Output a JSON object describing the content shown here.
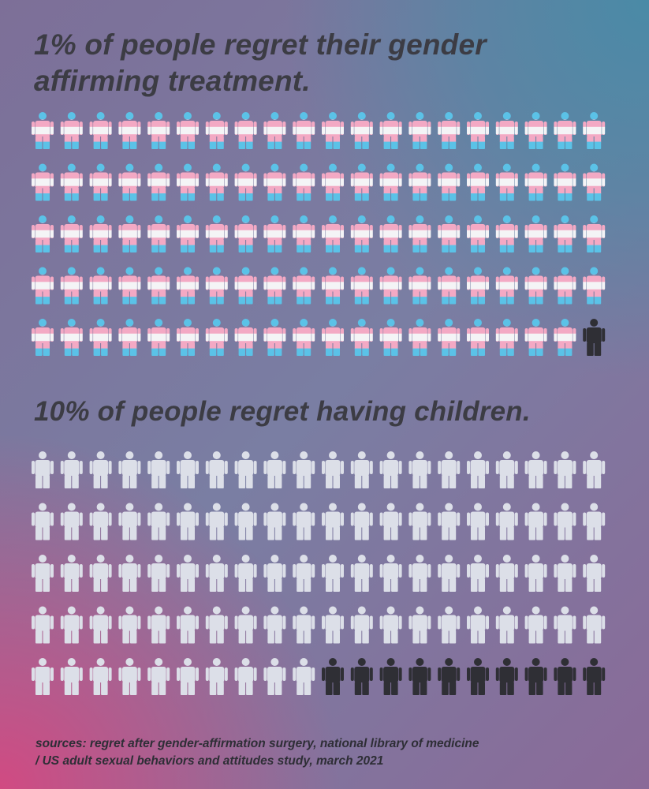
{
  "chart_data": [
    {
      "type": "pictogram",
      "title": "1% of people regret their gender affirming treatment.",
      "total": 100,
      "highlighted": 1,
      "percent": 1,
      "rows": 5,
      "columns": 20,
      "colors": {
        "base": "trans-flag",
        "highlight": "#2f2f35"
      }
    },
    {
      "type": "pictogram",
      "title": "10% of people regret having children.",
      "total": 100,
      "highlighted": 10,
      "percent": 10,
      "rows": 5,
      "columns": 20,
      "colors": {
        "base": "#dcdfe8",
        "highlight": "#2f2f35"
      }
    }
  ],
  "palette": {
    "flag_blue": "#5bc2e7",
    "flag_pink": "#f3a9c4",
    "flag_white": "#f4f4f6"
  },
  "sources": {
    "line1": "sources: regret after gender-affirmation surgery, national library of medicine",
    "line2": "/ US adult sexual behaviors and attitudes study, march 2021"
  }
}
